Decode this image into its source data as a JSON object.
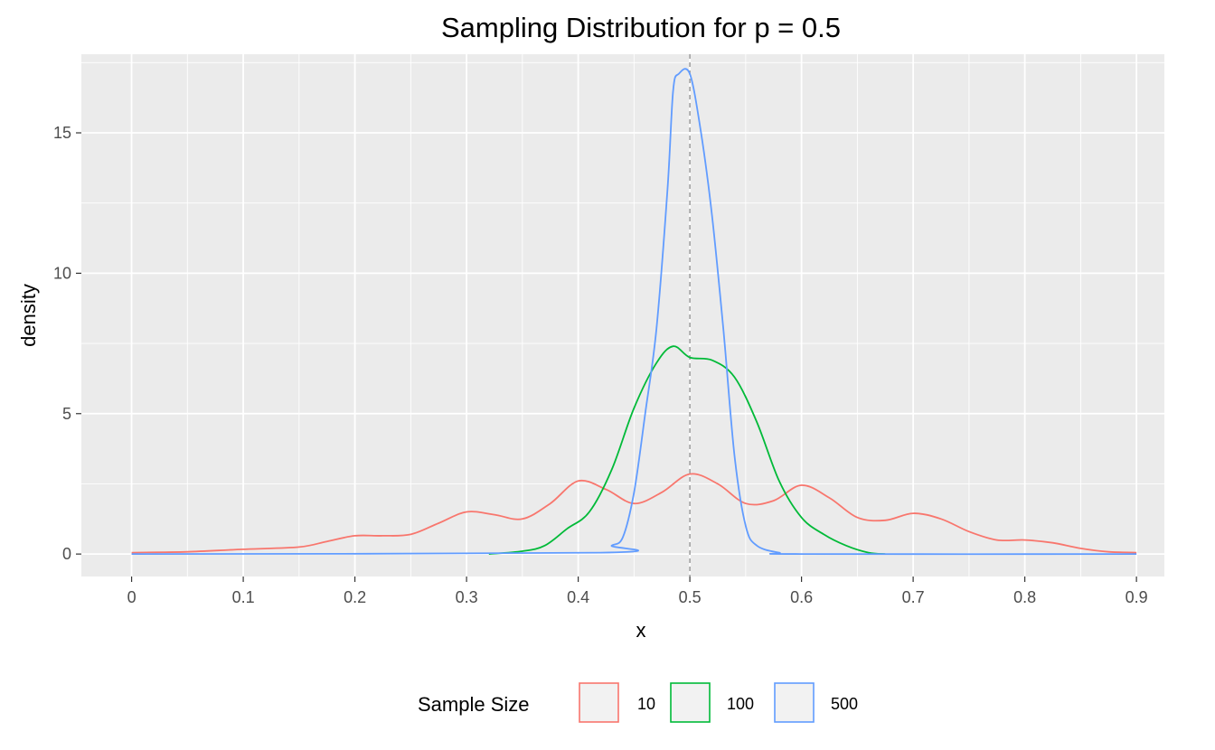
{
  "chart_data": {
    "type": "line",
    "title": "Sampling Distribution for p = 0.5",
    "xlabel": "x",
    "ylabel": "density",
    "xlim": [
      -0.045,
      0.925
    ],
    "ylim": [
      -0.8,
      17.8
    ],
    "x_ticks": [
      0,
      0.1,
      0.2,
      0.3,
      0.4,
      0.5,
      0.6,
      0.7,
      0.8,
      0.9
    ],
    "x_tick_labels": [
      "0",
      "0.1",
      "0.2",
      "0.3",
      "0.4",
      "0.5",
      "0.6",
      "0.7",
      "0.8",
      "0.9"
    ],
    "y_ticks": [
      0,
      5,
      10,
      15
    ],
    "y_tick_labels": [
      "0",
      "5",
      "10",
      "15"
    ],
    "grid": true,
    "reference_line": {
      "x": 0.5,
      "style": "dashed",
      "color": "#999999"
    },
    "legend": {
      "title": "Sample Size",
      "position": "bottom"
    },
    "series": [
      {
        "name": "10",
        "color": "#F8766D",
        "points": [
          [
            0,
            0.05
          ],
          [
            0.05,
            0.08
          ],
          [
            0.1,
            0.17
          ],
          [
            0.15,
            0.25
          ],
          [
            0.175,
            0.45
          ],
          [
            0.2,
            0.65
          ],
          [
            0.225,
            0.65
          ],
          [
            0.25,
            0.7
          ],
          [
            0.275,
            1.1
          ],
          [
            0.3,
            1.5
          ],
          [
            0.325,
            1.4
          ],
          [
            0.35,
            1.25
          ],
          [
            0.375,
            1.8
          ],
          [
            0.4,
            2.6
          ],
          [
            0.425,
            2.3
          ],
          [
            0.45,
            1.8
          ],
          [
            0.475,
            2.2
          ],
          [
            0.5,
            2.85
          ],
          [
            0.525,
            2.5
          ],
          [
            0.55,
            1.8
          ],
          [
            0.575,
            1.9
          ],
          [
            0.6,
            2.45
          ],
          [
            0.625,
            2.0
          ],
          [
            0.65,
            1.3
          ],
          [
            0.675,
            1.2
          ],
          [
            0.7,
            1.45
          ],
          [
            0.725,
            1.25
          ],
          [
            0.75,
            0.8
          ],
          [
            0.775,
            0.5
          ],
          [
            0.8,
            0.5
          ],
          [
            0.825,
            0.4
          ],
          [
            0.85,
            0.2
          ],
          [
            0.875,
            0.08
          ],
          [
            0.9,
            0.05
          ]
        ]
      },
      {
        "name": "100",
        "color": "#00BA38",
        "points": [
          [
            0.32,
            0.0
          ],
          [
            0.35,
            0.1
          ],
          [
            0.37,
            0.3
          ],
          [
            0.39,
            0.9
          ],
          [
            0.41,
            1.5
          ],
          [
            0.43,
            3.0
          ],
          [
            0.45,
            5.2
          ],
          [
            0.47,
            6.8
          ],
          [
            0.485,
            7.4
          ],
          [
            0.5,
            7.0
          ],
          [
            0.52,
            6.9
          ],
          [
            0.54,
            6.3
          ],
          [
            0.56,
            4.7
          ],
          [
            0.58,
            2.6
          ],
          [
            0.6,
            1.3
          ],
          [
            0.62,
            0.7
          ],
          [
            0.64,
            0.3
          ],
          [
            0.66,
            0.05
          ],
          [
            0.675,
            0.0
          ]
        ]
      },
      {
        "name": "500",
        "color": "#619CFF",
        "points": [
          [
            0,
            0.0
          ],
          [
            0.42,
            0.05
          ],
          [
            0.43,
            0.3
          ],
          [
            0.44,
            0.6
          ],
          [
            0.45,
            2.2
          ],
          [
            0.46,
            5.0
          ],
          [
            0.47,
            8.0
          ],
          [
            0.48,
            13.0
          ],
          [
            0.485,
            16.5
          ],
          [
            0.49,
            17.1
          ],
          [
            0.5,
            17.1
          ],
          [
            0.51,
            15.0
          ],
          [
            0.52,
            12.0
          ],
          [
            0.53,
            8.0
          ],
          [
            0.54,
            3.5
          ],
          [
            0.55,
            1.0
          ],
          [
            0.56,
            0.3
          ],
          [
            0.58,
            0.05
          ],
          [
            0.6,
            0.0
          ],
          [
            0.9,
            0.0
          ]
        ]
      }
    ]
  }
}
